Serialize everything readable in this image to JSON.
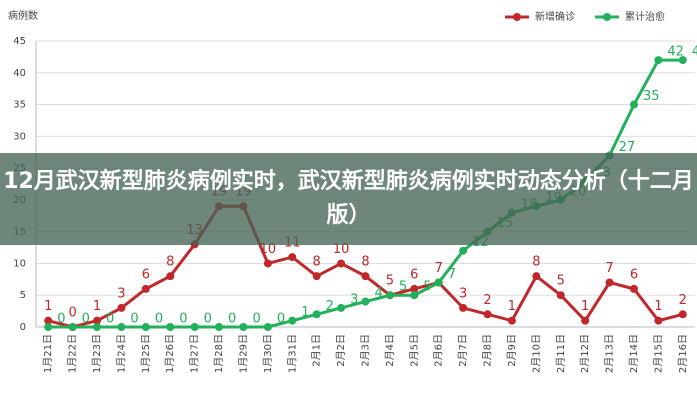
{
  "chart_data": {
    "type": "line",
    "y_label": "病例数",
    "categories": [
      "1月21日",
      "1月22日",
      "1月23日",
      "1月24日",
      "1月25日",
      "1月26日",
      "1月27日",
      "1月28日",
      "1月29日",
      "1月30日",
      "1月31日",
      "2月1日",
      "2月2日",
      "2月3日",
      "2月4日",
      "2月5日",
      "2月6日",
      "2月7日",
      "2月8日",
      "2月9日",
      "2月10日",
      "2月11日",
      "2月12日",
      "2月13日",
      "2月14日",
      "2月15日",
      "2月16日"
    ],
    "series": [
      {
        "name": "新增确诊",
        "color": "#c0282b",
        "values": [
          1,
          0,
          1,
          3,
          6,
          8,
          13,
          19,
          19,
          10,
          11,
          8,
          10,
          8,
          5,
          6,
          7,
          3,
          2,
          1,
          8,
          5,
          1,
          7,
          6,
          1,
          2
        ]
      },
      {
        "name": "累计治愈",
        "color": "#22b05a",
        "values": [
          0,
          0,
          0,
          0,
          0,
          0,
          0,
          0,
          0,
          0,
          1,
          2,
          3,
          4,
          5,
          5,
          7,
          12,
          15,
          18,
          19,
          20,
          23,
          27,
          35,
          42,
          42
        ]
      }
    ],
    "ylim": [
      0,
      45
    ],
    "yticks": [
      0,
      5,
      10,
      15,
      20,
      25,
      30,
      35,
      40,
      45
    ],
    "grid": true,
    "legend": "top-right",
    "overlay_title": "12月武汉新型肺炎病例实时，武汉新型肺炎病例实时动态分析（十二月版）"
  }
}
